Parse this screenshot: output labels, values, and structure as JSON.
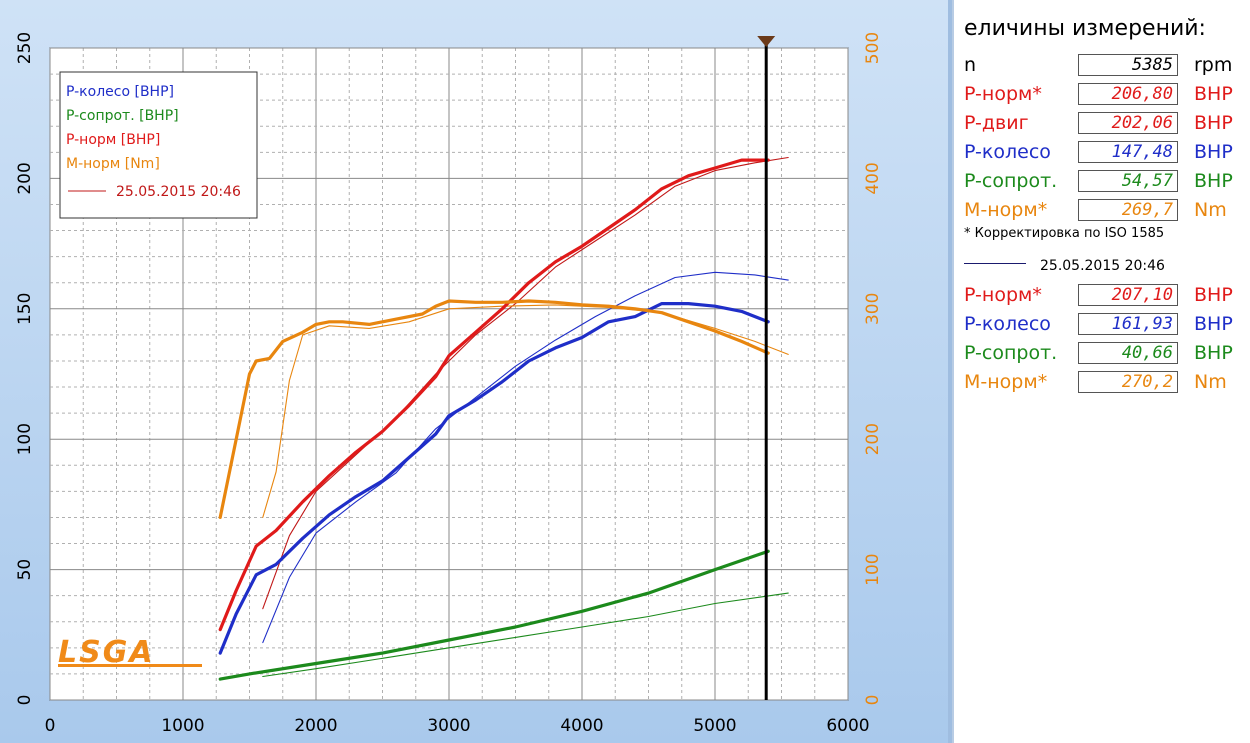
{
  "chart_data": {
    "type": "line",
    "x_ticks": [
      "0",
      "1000",
      "2000",
      "3000",
      "4000",
      "5000",
      "6000"
    ],
    "y_left_ticks": [
      "0",
      "50",
      "100",
      "150",
      "200",
      "250"
    ],
    "y_right_ticks": [
      "0",
      "100",
      "200",
      "300",
      "400",
      "500"
    ],
    "xlim": [
      0,
      6000
    ],
    "ylim_left": [
      0,
      250
    ],
    "ylim_right": [
      0,
      500
    ],
    "grid": true,
    "legend": {
      "position": "top-left",
      "entries": [
        {
          "label": "P-колесо [BHP]",
          "color": "#1f2ec8"
        },
        {
          "label": "P-сопрот. [BHP]",
          "color": "#1c8a1c"
        },
        {
          "label": "P-норм [BHP]",
          "color": "#e01a1a"
        },
        {
          "label": "M-норм [Nm]",
          "color": "#e8860f"
        },
        {
          "label": "25.05.2015 20:46",
          "color": "#c01818",
          "line": true
        }
      ]
    },
    "cursor_rpm": 5385,
    "series": [
      {
        "name": "P-норм [BHP]",
        "color": "#e01a1a",
        "axis": "left",
        "width": 3.2,
        "x": [
          1280,
          1400,
          1550,
          1700,
          1900,
          2100,
          2300,
          2500,
          2700,
          2900,
          3000,
          3200,
          3400,
          3600,
          3800,
          4000,
          4200,
          4400,
          4600,
          4800,
          5000,
          5200,
          5400
        ],
        "y": [
          27,
          42,
          59,
          65,
          76,
          86,
          95,
          103,
          113,
          124,
          132,
          141,
          150,
          160,
          168,
          174,
          181,
          188,
          196,
          201,
          204,
          207,
          207
        ]
      },
      {
        "name": "P-колесо [BHP]",
        "color": "#1f2ec8",
        "axis": "left",
        "width": 3.2,
        "x": [
          1280,
          1400,
          1550,
          1700,
          1900,
          2100,
          2300,
          2500,
          2700,
          2900,
          3000,
          3200,
          3400,
          3600,
          3800,
          4000,
          4200,
          4400,
          4600,
          4800,
          5000,
          5200,
          5400
        ],
        "y": [
          18,
          33,
          48,
          52,
          62,
          71,
          78,
          84,
          93,
          102,
          109,
          115,
          122,
          130,
          135,
          139,
          145,
          147,
          152,
          152,
          151,
          149,
          145
        ]
      },
      {
        "name": "P-сопрот. [BHP]",
        "color": "#1c8a1c",
        "axis": "left",
        "width": 3.2,
        "x": [
          1280,
          1500,
          2000,
          2500,
          3000,
          3500,
          4000,
          4500,
          5000,
          5400
        ],
        "y": [
          8,
          10,
          14,
          18,
          23,
          28,
          34,
          41,
          50,
          57
        ]
      },
      {
        "name": "M-норм [Nm]",
        "color": "#e8860f",
        "axis": "right",
        "width": 3.2,
        "x": [
          1280,
          1400,
          1500,
          1550,
          1650,
          1750,
          1900,
          2000,
          2100,
          2200,
          2400,
          2600,
          2800,
          2900,
          3000,
          3200,
          3400,
          3600,
          3800,
          4000,
          4200,
          4400,
          4600,
          4800,
          5000,
          5200,
          5400
        ],
        "y": [
          140,
          200,
          250,
          260,
          262,
          275,
          282,
          288,
          290,
          290,
          288,
          292,
          296,
          302,
          306,
          305,
          305,
          306,
          305,
          303,
          302,
          300,
          297,
          290,
          283,
          275,
          266
        ]
      },
      {
        "name": "P-норм ref",
        "color": "#c01818",
        "axis": "left",
        "width": 1.1,
        "x": [
          1600,
          1800,
          2000,
          2300,
          2600,
          2900,
          3200,
          3500,
          3800,
          4100,
          4400,
          4700,
          5000,
          5300,
          5550
        ],
        "y": [
          35,
          63,
          80,
          94,
          108,
          125,
          140,
          152,
          166,
          176,
          186,
          197,
          203,
          206,
          208
        ]
      },
      {
        "name": "P-колесо ref",
        "color": "#1f2ec8",
        "axis": "left",
        "width": 1.1,
        "x": [
          1600,
          1800,
          2000,
          2300,
          2600,
          2900,
          3200,
          3500,
          3800,
          4100,
          4400,
          4700,
          5000,
          5300,
          5550
        ],
        "y": [
          22,
          47,
          64,
          76,
          87,
          104,
          116,
          128,
          138,
          147,
          155,
          162,
          164,
          163,
          161
        ]
      },
      {
        "name": "P-сопрот. ref",
        "color": "#1c8a1c",
        "axis": "left",
        "width": 1.1,
        "x": [
          1600,
          2000,
          2500,
          3000,
          3500,
          4000,
          4500,
          5000,
          5550
        ],
        "y": [
          9,
          12,
          16,
          20,
          24,
          28,
          32,
          37,
          41
        ]
      },
      {
        "name": "M-норм ref",
        "color": "#e8860f",
        "axis": "right",
        "width": 1.1,
        "x": [
          1600,
          1700,
          1800,
          1900,
          2100,
          2400,
          2700,
          3000,
          3400,
          3800,
          4200,
          4600,
          5000,
          5300,
          5550
        ],
        "y": [
          140,
          175,
          245,
          280,
          287,
          285,
          290,
          300,
          302,
          303,
          301,
          297,
          285,
          275,
          265
        ]
      }
    ]
  },
  "logo": {
    "text": "LSGA"
  },
  "panel": {
    "title": "еличины измерений:",
    "rows": [
      {
        "label": "n",
        "value": "5385",
        "unit": "rpm",
        "color": "#000000"
      },
      {
        "label": "P-норм*",
        "value": "206,80",
        "unit": "BHP",
        "color": "#e01a1a"
      },
      {
        "label": "P-двиг",
        "value": "202,06",
        "unit": "BHP",
        "color": "#e01a1a"
      },
      {
        "label": "P-колесо",
        "value": "147,48",
        "unit": "BHP",
        "color": "#1f2ec8"
      },
      {
        "label": "P-сопрот.",
        "value": "54,57",
        "unit": "BHP",
        "color": "#1c8a1c"
      },
      {
        "label": "M-норм*",
        "value": "269,7",
        "unit": "Nm",
        "color": "#e8860f"
      }
    ],
    "note": "* Корректировка по ISO 1585",
    "ref_label": "25.05.2015 20:46",
    "ref_rows": [
      {
        "label": "P-норм*",
        "value": "207,10",
        "unit": "BHP",
        "color": "#e01a1a"
      },
      {
        "label": "P-колесо",
        "value": "161,93",
        "unit": "BHP",
        "color": "#1f2ec8"
      },
      {
        "label": "P-сопрот.",
        "value": "40,66",
        "unit": "BHP",
        "color": "#1c8a1c"
      },
      {
        "label": "M-норм*",
        "value": "270,2",
        "unit": "Nm",
        "color": "#e8860f"
      }
    ]
  }
}
